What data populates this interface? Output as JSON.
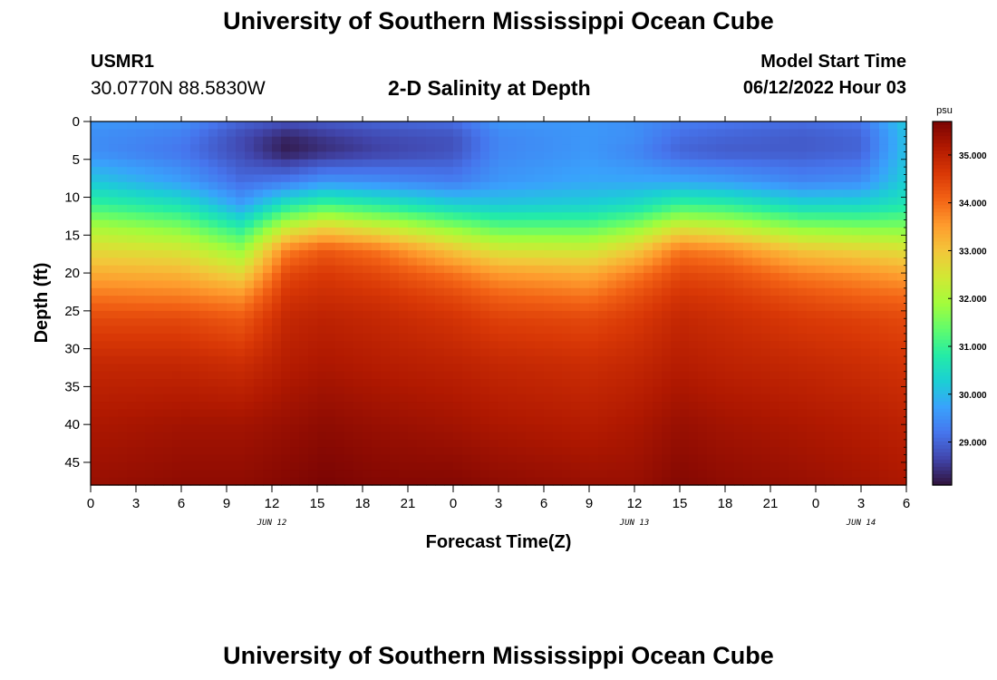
{
  "header": {
    "title": "University of Southern Mississippi Ocean Cube",
    "station_id": "USMR1",
    "coordinates": "30.0770N  88.5830W",
    "plot_title": "2-D Salinity at Depth",
    "model_start_label": "Model Start Time",
    "model_start_value": "06/12/2022 Hour 03"
  },
  "footer": {
    "title": "University of Southern Mississippi Ocean Cube"
  },
  "colors": {
    "background": "#ffffff",
    "colormap": [
      "#30123b",
      "#4145ab",
      "#4675ed",
      "#39a2fc",
      "#1bcfd4",
      "#24eca6",
      "#61fc6c",
      "#a4fc3b",
      "#d1e834",
      "#f3c63a",
      "#fe9b2d",
      "#f36315",
      "#d93806",
      "#b11901",
      "#7a0403"
    ]
  },
  "chart_data": {
    "type": "heatmap",
    "title": "2-D Salinity at Depth",
    "xlabel": "Forecast Time(Z)",
    "ylabel": "Depth (ft)",
    "x_range_hours": [
      0,
      54
    ],
    "x_tick_labels": [
      "0",
      "3",
      "6",
      "9",
      "12",
      "15",
      "18",
      "21",
      "0",
      "3",
      "6",
      "9",
      "12",
      "15",
      "18",
      "21",
      "0",
      "3",
      "6"
    ],
    "date_labels": [
      {
        "label": "JUN 12",
        "hour": 12
      },
      {
        "label": "JUN 13",
        "hour": 36
      },
      {
        "label": "JUN 14",
        "hour": 51
      }
    ],
    "y_range_ft": [
      0,
      48
    ],
    "y_tick_labels": [
      "0",
      "5",
      "10",
      "15",
      "20",
      "25",
      "30",
      "35",
      "40",
      "45"
    ],
    "y_tick_values": [
      0,
      5,
      10,
      15,
      20,
      25,
      30,
      35,
      40,
      45
    ],
    "colorbar": {
      "unit": "psu",
      "min": 28.1,
      "max": 35.7,
      "tick_values": [
        29,
        30,
        31,
        32,
        33,
        34,
        35
      ],
      "tick_labels": [
        "29.000",
        "30.000",
        "31.000",
        "32.000",
        "33.000",
        "34.000",
        "35.000"
      ]
    },
    "description_grid": {
      "time_hours": [
        0,
        6,
        10,
        13,
        15.5,
        19,
        24,
        27,
        33,
        36,
        39,
        42,
        47,
        51,
        54
      ],
      "depth_ft": [
        0,
        2,
        4,
        8,
        11,
        14,
        17,
        20,
        23,
        26,
        32,
        40,
        48
      ],
      "salinity_profile_columns": [
        [
          29.6,
          29.5,
          29.5,
          30.2,
          31.0,
          32.0,
          32.7,
          33.3,
          33.9,
          34.4,
          34.9,
          35.2,
          35.4
        ],
        [
          29.5,
          29.3,
          29.2,
          29.7,
          30.6,
          31.6,
          32.5,
          33.2,
          33.8,
          34.4,
          34.9,
          35.3,
          35.5
        ],
        [
          29.0,
          28.7,
          28.7,
          29.1,
          29.7,
          30.8,
          31.8,
          32.7,
          33.6,
          34.2,
          34.8,
          35.3,
          35.5
        ],
        [
          28.8,
          28.3,
          28.2,
          29.3,
          30.7,
          32.3,
          33.8,
          34.4,
          34.7,
          34.9,
          35.1,
          35.4,
          35.6
        ],
        [
          28.9,
          28.5,
          28.4,
          29.6,
          31.1,
          32.8,
          34.2,
          34.6,
          34.8,
          35.0,
          35.2,
          35.5,
          35.7
        ],
        [
          29.0,
          28.7,
          28.6,
          29.5,
          30.8,
          32.4,
          33.9,
          34.4,
          34.7,
          34.9,
          35.1,
          35.4,
          35.6
        ],
        [
          29.1,
          28.8,
          28.8,
          29.3,
          30.3,
          31.7,
          33.0,
          33.9,
          34.4,
          34.7,
          35.0,
          35.3,
          35.6
        ],
        [
          29.6,
          29.4,
          29.4,
          29.6,
          30.2,
          31.3,
          32.5,
          33.5,
          34.1,
          34.5,
          34.9,
          35.2,
          35.5
        ],
        [
          29.6,
          29.6,
          29.6,
          29.8,
          30.3,
          31.3,
          32.4,
          33.3,
          33.9,
          34.4,
          34.8,
          35.1,
          35.4
        ],
        [
          29.5,
          29.5,
          29.4,
          29.8,
          30.5,
          31.7,
          32.9,
          33.8,
          34.3,
          34.6,
          34.9,
          35.2,
          35.4
        ],
        [
          29.3,
          29.1,
          29.0,
          29.8,
          31.0,
          32.5,
          33.9,
          34.4,
          34.7,
          34.9,
          35.1,
          35.4,
          35.6
        ],
        [
          29.2,
          29.0,
          28.9,
          29.7,
          30.9,
          32.3,
          33.7,
          34.3,
          34.6,
          34.8,
          35.0,
          35.3,
          35.5
        ],
        [
          29.1,
          28.9,
          28.9,
          29.4,
          30.4,
          31.7,
          33.0,
          33.8,
          34.3,
          34.6,
          34.9,
          35.2,
          35.4
        ],
        [
          29.2,
          29.0,
          29.0,
          29.5,
          30.4,
          31.6,
          32.8,
          33.6,
          34.1,
          34.5,
          34.8,
          35.1,
          35.3
        ],
        [
          30.2,
          30.1,
          30.1,
          30.3,
          30.7,
          31.6,
          32.6,
          33.4,
          34.0,
          34.4,
          34.7,
          35.0,
          35.2
        ]
      ]
    }
  }
}
